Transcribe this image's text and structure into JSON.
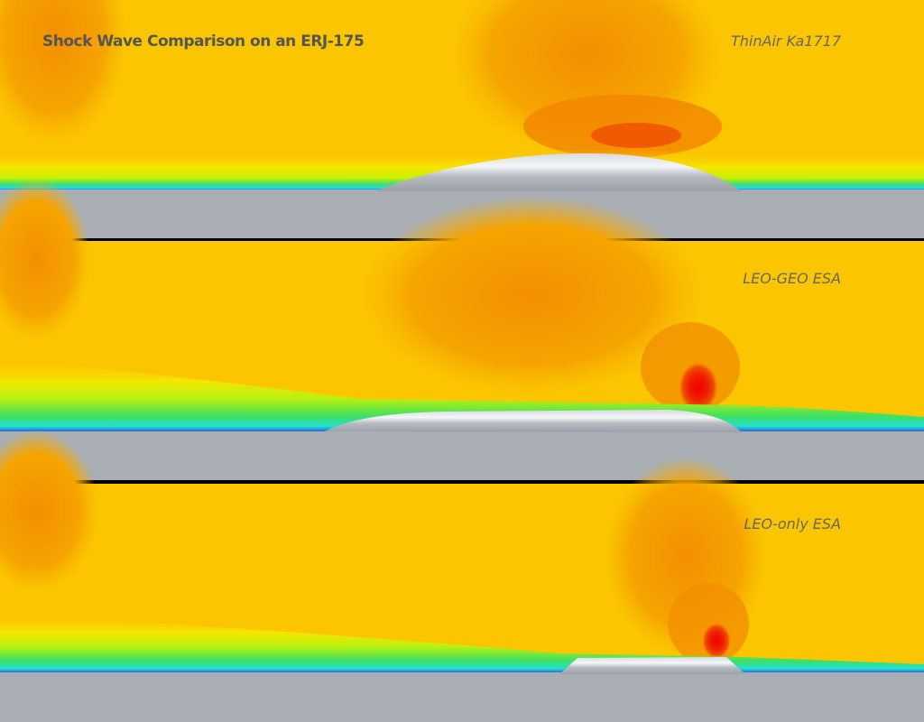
{
  "header": {
    "title": "Shock Wave Comparison on an ERJ-175"
  },
  "panels": [
    {
      "label": "ThinAir Ka1717"
    },
    {
      "label": "LEO-GEO ESA"
    },
    {
      "label": "LEO-only ESA"
    }
  ]
}
